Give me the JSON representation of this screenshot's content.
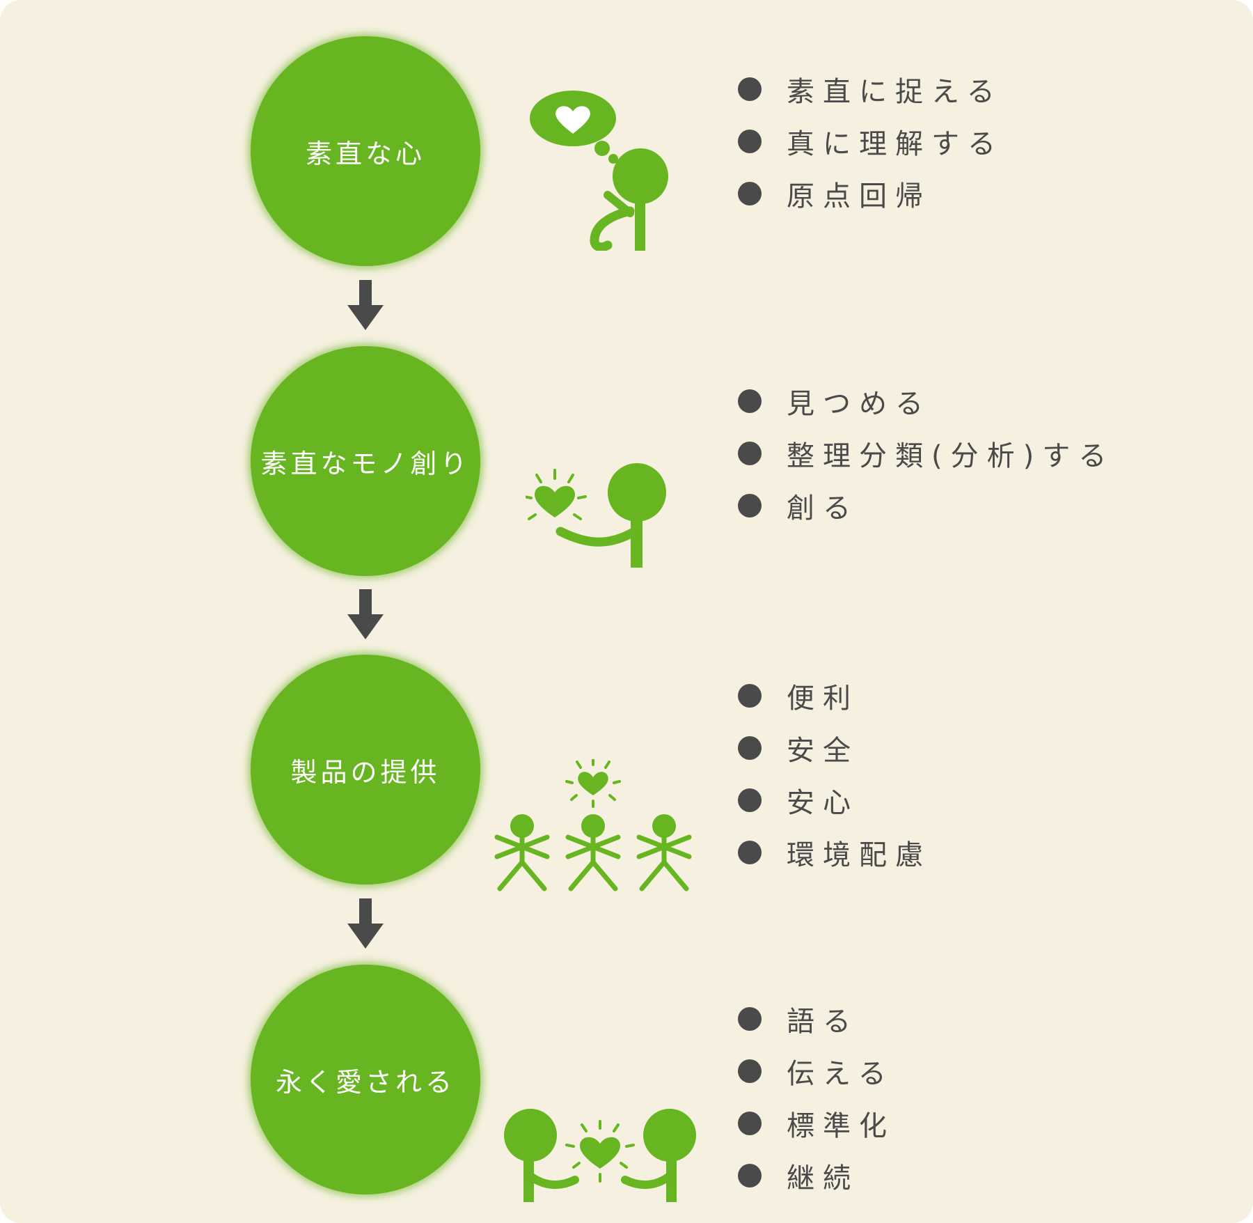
{
  "colors": {
    "background": "#f5f0df",
    "accent_green": "#66b521",
    "text_dark": "#4a4a4a",
    "circle_text": "#ffffff"
  },
  "stages": [
    {
      "label": "素直な心",
      "illustration": "thinking-person-icon",
      "items": [
        "素直に捉える",
        "真に理解する",
        "原点回帰"
      ]
    },
    {
      "label": "素直なモノ創り",
      "illustration": "person-holding-heart-icon",
      "items": [
        "見つめる",
        "整理分類(分析)する",
        "創る"
      ]
    },
    {
      "label": "製品の提供",
      "illustration": "three-people-cheering-icon",
      "items": [
        "便利",
        "安全",
        "安心",
        "環境配慮"
      ]
    },
    {
      "label": "永く愛される",
      "illustration": "two-people-sharing-heart-icon",
      "items": [
        "語る",
        "伝える",
        "標準化",
        "継続"
      ]
    }
  ]
}
